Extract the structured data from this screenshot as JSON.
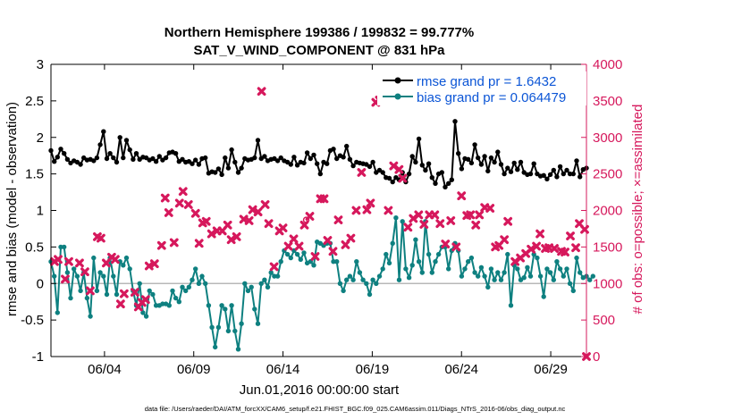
{
  "chart_data": {
    "type": "line",
    "title": "Northern Hemisphere 199386 / 199832 = 99.777%",
    "subtitle": "SAT_V_WIND_COMPONENT @ 831 hPa",
    "xlabel": "Jun.01,2016 00:00:00 start",
    "ylabel_left": "rmse and bias (model - observation)",
    "ylabel_right": "# of obs: o=possible; ×=assimilated",
    "footnote": "data file: /Users/raeder/DAI/ATM_forcXX/CAM6_setup/f.e21.FHIST_BGC.f09_025.CAM6assim.011/Diags_NTrS_2016-06/obs_diag_output.nc",
    "x_tick_labels": [
      "06/04",
      "06/09",
      "06/14",
      "06/19",
      "06/24",
      "06/29"
    ],
    "x_tick_days": [
      4,
      9,
      14,
      19,
      24,
      29
    ],
    "xlim": [
      1,
      31
    ],
    "ylim_left": [
      -1,
      3
    ],
    "ylim_right": [
      0,
      4000
    ],
    "y_ticks_left": [
      "-1",
      "-0.5",
      "0",
      "0.5",
      "1",
      "1.5",
      "2",
      "2.5",
      "3"
    ],
    "y_ticks_right": [
      "0",
      "500",
      "1000",
      "1500",
      "2000",
      "2500",
      "3000",
      "3500",
      "4000"
    ],
    "colors": {
      "rmse": "#000000",
      "bias": "#0e8080",
      "obs": "#d6185c",
      "zero_line": "#b8b8b8",
      "legend_text": "#0b55d6"
    },
    "series": [
      {
        "name": "rmse",
        "legend": "rmse grand pr = 1.6432",
        "values": [
          1.82,
          1.67,
          1.73,
          1.84,
          1.78,
          1.7,
          1.65,
          1.68,
          1.66,
          1.63,
          1.72,
          1.69,
          1.7,
          1.68,
          1.72,
          1.9,
          2.08,
          1.71,
          1.78,
          1.72,
          1.66,
          2.0,
          1.72,
          1.96,
          1.83,
          1.7,
          1.78,
          1.7,
          1.73,
          1.72,
          1.69,
          1.71,
          1.67,
          1.74,
          1.69,
          1.72,
          1.79,
          1.8,
          1.78,
          1.67,
          1.7,
          1.66,
          1.67,
          1.64,
          1.69,
          1.63,
          1.71,
          1.72,
          1.51,
          1.53,
          1.52,
          1.57,
          1.49,
          1.72,
          1.58,
          1.83,
          1.66,
          1.52,
          1.58,
          1.71,
          1.69,
          1.7,
          1.72,
          1.96,
          1.71,
          1.74,
          1.68,
          1.7,
          1.71,
          1.68,
          1.72,
          1.68,
          1.66,
          1.63,
          1.73,
          1.62,
          1.66,
          1.65,
          1.79,
          1.71,
          1.76,
          1.64,
          1.5,
          1.66,
          1.64,
          1.82,
          1.84,
          1.71,
          1.75,
          1.73,
          1.88,
          1.7,
          1.61,
          1.66,
          1.65,
          1.64,
          1.63,
          1.6,
          1.66,
          1.52,
          1.55,
          1.52,
          1.45,
          1.44,
          1.39,
          1.45,
          1.42,
          1.52,
          1.39,
          1.5,
          1.74,
          1.66,
          1.98,
          1.62,
          1.55,
          1.64,
          1.45,
          1.37,
          1.5,
          1.52,
          1.32,
          1.37,
          1.42,
          2.22,
          1.78,
          1.57,
          1.71,
          1.7,
          1.65,
          1.9,
          1.72,
          1.63,
          1.74,
          1.54,
          1.72,
          1.66,
          1.8,
          1.63,
          1.5,
          1.58,
          1.53,
          1.65,
          1.56,
          1.66,
          1.52,
          1.49,
          1.5,
          1.64,
          1.5,
          1.47,
          1.48,
          1.43,
          1.49,
          1.55,
          1.46,
          1.6,
          1.5,
          1.55,
          1.5,
          1.5,
          1.68,
          1.46,
          1.56,
          1.58
        ]
      },
      {
        "name": "bias",
        "legend": "bias grand pr = 0.064479",
        "values": [
          0.3,
          0.1,
          -0.4,
          0.5,
          0.5,
          0.15,
          -0.2,
          0.2,
          0.1,
          -0.1,
          0.15,
          -0.2,
          -0.45,
          0.35,
          -0.1,
          0.15,
          0.1,
          -0.15,
          0.35,
          0.1,
          -0.15,
          0.3,
          0.25,
          0.35,
          0.2,
          -0.1,
          -0.3,
          0.0,
          -0.4,
          -0.45,
          -0.1,
          -0.15,
          -0.3,
          -0.3,
          -0.28,
          -0.28,
          -0.3,
          -0.1,
          -0.2,
          -0.25,
          -0.05,
          -0.1,
          -0.05,
          0.05,
          0.2,
          0.0,
          0.1,
          0.0,
          -0.3,
          -0.6,
          -0.87,
          -0.6,
          -0.3,
          -0.35,
          -0.65,
          -0.3,
          -0.65,
          -0.9,
          -0.55,
          0.0,
          -0.1,
          -0.05,
          -0.35,
          -0.55,
          0.0,
          0.05,
          -0.05,
          0.15,
          0.1,
          0.1,
          0.3,
          0.45,
          0.4,
          0.35,
          0.45,
          0.4,
          0.33,
          0.42,
          0.28,
          0.3,
          0.25,
          0.57,
          0.55,
          0.52,
          0.55,
          0.55,
          0.3,
          0.3,
          0.0,
          -0.1,
          0.05,
          0.1,
          0.05,
          0.3,
          0.15,
          0.05,
          0.0,
          -0.15,
          0.05,
          0.0,
          0.1,
          0.2,
          0.4,
          0.28,
          0.55,
          0.9,
          0.05,
          0.85,
          0.2,
          0.08,
          0.25,
          0.6,
          0.3,
          0.15,
          0.85,
          0.4,
          0.15,
          0.3,
          0.4,
          0.5,
          0.5,
          0.2,
          0.45,
          0.55,
          0.45,
          0.1,
          0.2,
          0.3,
          0.35,
          0.15,
          0.1,
          0.22,
          0.1,
          -0.05,
          0.2,
          0.05,
          0.15,
          0.05,
          0.15,
          0.4,
          -0.3,
          0.25,
          0.2,
          0.05,
          0.08,
          0.22,
          0.1,
          0.4,
          0.35,
          0.1,
          -0.18,
          0.2,
          0.15,
          0.05,
          0.3,
          0.2,
          0.1,
          0.2,
          0.0,
          -0.1,
          0.35,
          0.15,
          0.08,
          0.1,
          0.05,
          0.1
        ]
      },
      {
        "name": "obs_assimilated",
        "points": [
          [
            1.2,
            1300
          ],
          [
            1.4,
            1330
          ],
          [
            1.8,
            1060
          ],
          [
            2.0,
            1300
          ],
          [
            2.6,
            1280
          ],
          [
            2.9,
            1160
          ],
          [
            3.2,
            900
          ],
          [
            3.6,
            1640
          ],
          [
            3.8,
            1620
          ],
          [
            4.1,
            1280
          ],
          [
            4.4,
            1360
          ],
          [
            4.6,
            1330
          ],
          [
            4.9,
            720
          ],
          [
            5.1,
            860
          ],
          [
            5.7,
            880
          ],
          [
            5.9,
            680
          ],
          [
            6.1,
            740
          ],
          [
            6.3,
            780
          ],
          [
            6.5,
            1240
          ],
          [
            6.8,
            1270
          ],
          [
            7.2,
            1520
          ],
          [
            7.4,
            2170
          ],
          [
            7.6,
            1970
          ],
          [
            7.9,
            1560
          ],
          [
            8.2,
            2100
          ],
          [
            8.4,
            2260
          ],
          [
            8.7,
            2080
          ],
          [
            9.1,
            1960
          ],
          [
            9.3,
            1550
          ],
          [
            9.5,
            1830
          ],
          [
            9.7,
            1850
          ],
          [
            10.0,
            1680
          ],
          [
            10.3,
            1720
          ],
          [
            10.6,
            1720
          ],
          [
            10.9,
            1800
          ],
          [
            11.1,
            1600
          ],
          [
            11.4,
            1640
          ],
          [
            11.8,
            1880
          ],
          [
            12.1,
            1860
          ],
          [
            12.3,
            2010
          ],
          [
            12.6,
            1980
          ],
          [
            12.8,
            3630
          ],
          [
            13.0,
            2080
          ],
          [
            13.2,
            1820
          ],
          [
            13.5,
            1230
          ],
          [
            13.8,
            1720
          ],
          [
            14.0,
            1760
          ],
          [
            14.3,
            1510
          ],
          [
            14.6,
            1610
          ],
          [
            14.9,
            1510
          ],
          [
            15.2,
            1800
          ],
          [
            15.5,
            1920
          ],
          [
            15.8,
            1370
          ],
          [
            16.1,
            2160
          ],
          [
            16.3,
            2160
          ],
          [
            16.5,
            1590
          ],
          [
            16.8,
            1440
          ],
          [
            17.1,
            1870
          ],
          [
            17.5,
            1530
          ],
          [
            17.8,
            1620
          ],
          [
            18.1,
            2000
          ],
          [
            18.4,
            2520
          ],
          [
            18.7,
            2010
          ],
          [
            18.9,
            2100
          ],
          [
            19.2,
            3480
          ],
          [
            19.4,
            3510
          ],
          [
            19.6,
            3520
          ],
          [
            19.9,
            2000
          ],
          [
            20.2,
            2610
          ],
          [
            20.5,
            2560
          ],
          [
            20.7,
            2440
          ],
          [
            21.0,
            1770
          ],
          [
            21.3,
            1890
          ],
          [
            21.6,
            1940
          ],
          [
            21.9,
            1810
          ],
          [
            22.2,
            1940
          ],
          [
            22.5,
            1940
          ],
          [
            22.8,
            1820
          ],
          [
            23.1,
            1540
          ],
          [
            23.4,
            1860
          ],
          [
            23.7,
            1500
          ],
          [
            24.0,
            2200
          ],
          [
            24.3,
            1930
          ],
          [
            24.5,
            1940
          ],
          [
            24.8,
            1800
          ],
          [
            25.0,
            1940
          ],
          [
            25.3,
            2040
          ],
          [
            25.6,
            2030
          ],
          [
            25.9,
            1500
          ],
          [
            26.1,
            1520
          ],
          [
            26.4,
            1600
          ],
          [
            26.6,
            1850
          ],
          [
            27.0,
            1300
          ],
          [
            27.3,
            1350
          ],
          [
            27.6,
            1410
          ],
          [
            27.9,
            1470
          ],
          [
            28.2,
            1510
          ],
          [
            28.4,
            1680
          ],
          [
            28.7,
            1480
          ],
          [
            28.9,
            1490
          ],
          [
            29.2,
            1480
          ],
          [
            29.6,
            1440
          ],
          [
            29.8,
            1430
          ],
          [
            30.1,
            1650
          ],
          [
            30.4,
            1490
          ],
          [
            30.6,
            1820
          ],
          [
            30.9,
            1740
          ],
          [
            31.0,
            0
          ]
        ]
      },
      {
        "name": "obs_possible",
        "points": [
          [
            15.3,
            1870
          ]
        ]
      }
    ]
  }
}
